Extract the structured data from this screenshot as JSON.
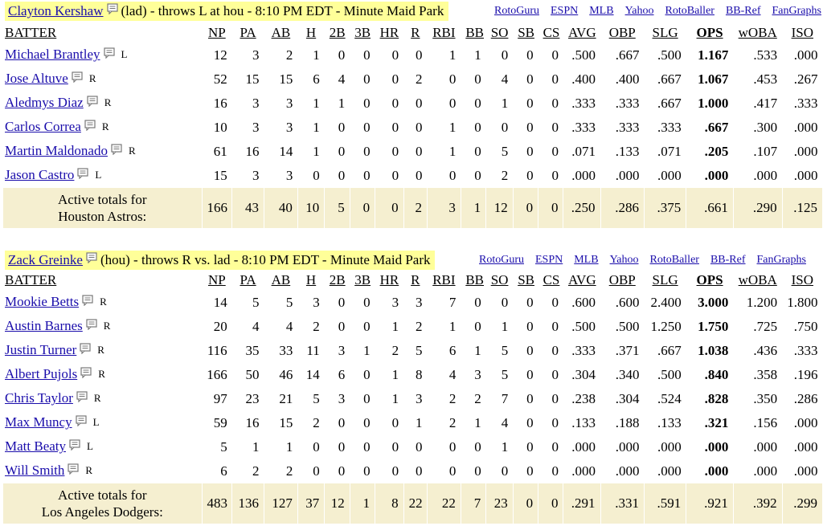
{
  "columns": [
    "BATTER",
    "NP",
    "PA",
    "AB",
    "H",
    "2B",
    "3B",
    "HR",
    "R",
    "RBI",
    "BB",
    "SO",
    "SB",
    "CS",
    "AVG",
    "OBP",
    "SLG",
    "OPS",
    "wOBA",
    "ISO"
  ],
  "links": [
    "RotoGuru",
    "ESPN",
    "MLB",
    "Yahoo",
    "RotoBaller",
    "BB-Ref",
    "FanGraphs"
  ],
  "icons": {
    "note": "note-icon"
  },
  "games": [
    {
      "pitcher": "Clayton Kershaw",
      "description": "(lad) - throws L at hou - 8:10 PM EDT - Minute Maid Park",
      "rows": [
        {
          "name": "Michael Brantley",
          "hand": "L",
          "stats": [
            "12",
            "3",
            "2",
            "1",
            "0",
            "0",
            "0",
            "0",
            "1",
            "1",
            "0",
            "0",
            "0",
            ".500",
            ".667",
            ".500",
            "1.167",
            ".533",
            ".000"
          ]
        },
        {
          "name": "Jose Altuve",
          "hand": "R",
          "stats": [
            "52",
            "15",
            "15",
            "6",
            "4",
            "0",
            "0",
            "2",
            "0",
            "0",
            "4",
            "0",
            "0",
            ".400",
            ".400",
            ".667",
            "1.067",
            ".453",
            ".267"
          ]
        },
        {
          "name": "Aledmys Diaz",
          "hand": "R",
          "stats": [
            "16",
            "3",
            "3",
            "1",
            "1",
            "0",
            "0",
            "0",
            "0",
            "0",
            "1",
            "0",
            "0",
            ".333",
            ".333",
            ".667",
            "1.000",
            ".417",
            ".333"
          ]
        },
        {
          "name": "Carlos Correa",
          "hand": "R",
          "stats": [
            "10",
            "3",
            "3",
            "1",
            "0",
            "0",
            "0",
            "0",
            "1",
            "0",
            "0",
            "0",
            "0",
            ".333",
            ".333",
            ".333",
            ".667",
            ".300",
            ".000"
          ]
        },
        {
          "name": "Martin Maldonado",
          "hand": "R",
          "stats": [
            "61",
            "16",
            "14",
            "1",
            "0",
            "0",
            "0",
            "0",
            "1",
            "0",
            "5",
            "0",
            "0",
            ".071",
            ".133",
            ".071",
            ".205",
            ".107",
            ".000"
          ]
        },
        {
          "name": "Jason Castro",
          "hand": "L",
          "stats": [
            "15",
            "3",
            "3",
            "0",
            "0",
            "0",
            "0",
            "0",
            "0",
            "0",
            "2",
            "0",
            "0",
            ".000",
            ".000",
            ".000",
            ".000",
            ".000",
            ".000"
          ]
        }
      ],
      "totals": {
        "label_line1": "Active totals for",
        "label_line2": "Houston Astros:",
        "stats": [
          "166",
          "43",
          "40",
          "10",
          "5",
          "0",
          "0",
          "2",
          "3",
          "1",
          "12",
          "0",
          "0",
          ".250",
          ".286",
          ".375",
          ".661",
          ".290",
          ".125"
        ]
      }
    },
    {
      "pitcher": "Zack Greinke",
      "description": "(hou) - throws R vs. lad - 8:10 PM EDT - Minute Maid Park",
      "rows": [
        {
          "name": "Mookie Betts",
          "hand": "R",
          "stats": [
            "14",
            "5",
            "5",
            "3",
            "0",
            "0",
            "3",
            "3",
            "7",
            "0",
            "0",
            "0",
            "0",
            ".600",
            ".600",
            "2.400",
            "3.000",
            "1.200",
            "1.800"
          ]
        },
        {
          "name": "Austin Barnes",
          "hand": "R",
          "stats": [
            "20",
            "4",
            "4",
            "2",
            "0",
            "0",
            "1",
            "2",
            "1",
            "0",
            "1",
            "0",
            "0",
            ".500",
            ".500",
            "1.250",
            "1.750",
            ".725",
            ".750"
          ]
        },
        {
          "name": "Justin Turner",
          "hand": "R",
          "stats": [
            "116",
            "35",
            "33",
            "11",
            "3",
            "1",
            "2",
            "5",
            "6",
            "1",
            "5",
            "0",
            "0",
            ".333",
            ".371",
            ".667",
            "1.038",
            ".436",
            ".333"
          ]
        },
        {
          "name": "Albert Pujols",
          "hand": "R",
          "stats": [
            "166",
            "50",
            "46",
            "14",
            "6",
            "0",
            "1",
            "8",
            "4",
            "3",
            "5",
            "0",
            "0",
            ".304",
            ".340",
            ".500",
            ".840",
            ".358",
            ".196"
          ]
        },
        {
          "name": "Chris Taylor",
          "hand": "R",
          "stats": [
            "97",
            "23",
            "21",
            "5",
            "3",
            "0",
            "1",
            "3",
            "2",
            "2",
            "7",
            "0",
            "0",
            ".238",
            ".304",
            ".524",
            ".828",
            ".350",
            ".286"
          ]
        },
        {
          "name": "Max Muncy",
          "hand": "L",
          "stats": [
            "59",
            "16",
            "15",
            "2",
            "0",
            "0",
            "0",
            "1",
            "2",
            "1",
            "4",
            "0",
            "0",
            ".133",
            ".188",
            ".133",
            ".321",
            ".156",
            ".000"
          ]
        },
        {
          "name": "Matt Beaty",
          "hand": "L",
          "stats": [
            "5",
            "1",
            "1",
            "0",
            "0",
            "0",
            "0",
            "0",
            "0",
            "0",
            "1",
            "0",
            "0",
            ".000",
            ".000",
            ".000",
            ".000",
            ".000",
            ".000"
          ]
        },
        {
          "name": "Will Smith",
          "hand": "R",
          "stats": [
            "6",
            "2",
            "2",
            "0",
            "0",
            "0",
            "0",
            "0",
            "0",
            "0",
            "0",
            "0",
            "0",
            ".000",
            ".000",
            ".000",
            ".000",
            ".000",
            ".000"
          ]
        }
      ],
      "totals": {
        "label_line1": "Active totals for",
        "label_line2": "Los Angeles Dodgers:",
        "stats": [
          "483",
          "136",
          "127",
          "37",
          "12",
          "1",
          "8",
          "22",
          "22",
          "7",
          "23",
          "0",
          "0",
          ".291",
          ".331",
          ".591",
          ".921",
          ".392",
          ".299"
        ]
      }
    }
  ]
}
